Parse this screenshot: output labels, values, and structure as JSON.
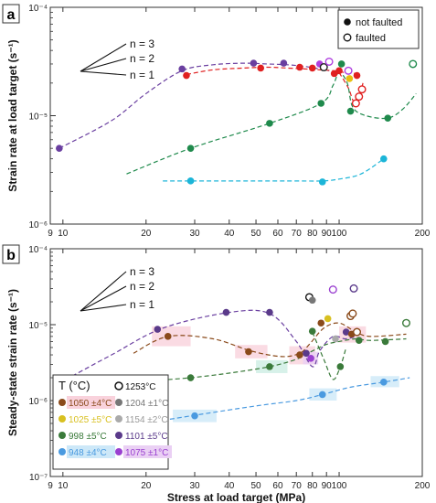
{
  "chart_data": [
    {
      "type": "scatter",
      "panel": "a",
      "ylabel": "Strain rate at load target (s⁻¹)",
      "xlabel": "",
      "x_scale": "log",
      "y_scale": "log",
      "xlim": [
        9,
        200
      ],
      "ylim": [
        1e-06,
        0.0001
      ],
      "x_ticks": [
        9,
        10,
        20,
        30,
        40,
        50,
        60,
        70,
        80,
        90,
        100,
        200
      ],
      "x_tick_labels": [
        "9",
        "10",
        "20",
        "30",
        "40",
        "50",
        "60",
        "70",
        "80",
        "90",
        "100",
        "200"
      ],
      "y_ticks": [
        1e-06,
        1e-05,
        0.0001
      ],
      "y_tick_labels": [
        "10⁻⁶",
        "10⁻⁵",
        "10⁻⁴"
      ],
      "legend": {
        "placement": "top-right",
        "entries": [
          {
            "label": "not faulted",
            "marker": "filled"
          },
          {
            "label": "faulted",
            "marker": "open"
          }
        ]
      },
      "slope_labels": [
        "n = 3",
        "n = 2",
        "n = 1"
      ],
      "series": [
        {
          "color": "#6a3fa0",
          "line": "dashed",
          "x": [
            9.7,
            15,
            20,
            27,
            35,
            45,
            55,
            65,
            75,
            85,
            92
          ],
          "y": [
            5e-06,
            9e-06,
            1.6e-05,
            2.6e-05,
            2.95e-05,
            3.05e-05,
            3e-05,
            2.95e-05,
            2.85e-05,
            2.7e-05,
            2.6e-05
          ]
        },
        {
          "color": "#e02020",
          "line": "dashed",
          "x": [
            28,
            35,
            45,
            55,
            65,
            75,
            85,
            95,
            105,
            115
          ],
          "y": [
            2.4e-05,
            2.65e-05,
            2.75e-05,
            2.8e-05,
            2.75e-05,
            2.7e-05,
            2.65e-05,
            2.6e-05,
            2.5e-05,
            2.45e-05
          ]
        },
        {
          "color": "#e02020",
          "line": "dashed",
          "x": [
            100,
            108,
            113,
            118,
            122
          ],
          "y": [
            2.5e-05,
            1.8e-05,
            1.35e-05,
            1.5e-05,
            2e-05
          ]
        },
        {
          "color": "#1f8a4c",
          "line": "dashed",
          "x": [
            17,
            29,
            56,
            86,
            95,
            100,
            107,
            112,
            125,
            150,
            170,
            190
          ],
          "y": [
            2.9e-06,
            5e-06,
            8.5e-06,
            1.3e-05,
            1.9e-05,
            2.5e-05,
            2e-05,
            1.2e-05,
            1e-05,
            9.5e-06,
            1.15e-05,
            1.6e-05
          ]
        },
        {
          "color": "#1cb5d8",
          "line": "dashed",
          "x": [
            23,
            29,
            50,
            70,
            87,
            100,
            120,
            145
          ],
          "y": [
            2.5e-06,
            2.5e-06,
            2.5e-06,
            2.5e-06,
            2.5e-06,
            2.6e-06,
            2.9e-06,
            4e-06
          ]
        }
      ],
      "points": [
        {
          "x": 9.7,
          "y": 5e-06,
          "color": "#6a3fa0",
          "open": false
        },
        {
          "x": 27,
          "y": 2.7e-05,
          "color": "#6a3fa0",
          "open": false
        },
        {
          "x": 28,
          "y": 2.35e-05,
          "color": "#e02020",
          "open": false
        },
        {
          "x": 49,
          "y": 3.05e-05,
          "color": "#6a3fa0",
          "open": false
        },
        {
          "x": 52,
          "y": 2.75e-05,
          "color": "#e02020",
          "open": false
        },
        {
          "x": 63,
          "y": 3.05e-05,
          "color": "#6a3fa0",
          "open": false
        },
        {
          "x": 72,
          "y": 2.8e-05,
          "color": "#e02020",
          "open": false
        },
        {
          "x": 80,
          "y": 2.75e-05,
          "color": "#e02020",
          "open": false
        },
        {
          "x": 85,
          "y": 3e-05,
          "color": "#b040e0",
          "open": false
        },
        {
          "x": 88,
          "y": 2.8e-05,
          "color": "#222222",
          "open": true
        },
        {
          "x": 92,
          "y": 3.15e-05,
          "color": "#b040e0",
          "open": true
        },
        {
          "x": 96,
          "y": 2.45e-05,
          "color": "#e02020",
          "open": false
        },
        {
          "x": 100,
          "y": 2.6e-05,
          "color": "#e02020",
          "open": false
        },
        {
          "x": 102,
          "y": 3e-05,
          "color": "#1f8a4c",
          "open": false
        },
        {
          "x": 108,
          "y": 2.6e-05,
          "color": "#b040e0",
          "open": true
        },
        {
          "x": 109,
          "y": 2.2e-05,
          "color": "#e8c010",
          "open": false
        },
        {
          "x": 116,
          "y": 2.35e-05,
          "color": "#e02020",
          "open": false
        },
        {
          "x": 115,
          "y": 1.3e-05,
          "color": "#e02020",
          "open": true
        },
        {
          "x": 118,
          "y": 1.5e-05,
          "color": "#e02020",
          "open": true
        },
        {
          "x": 121,
          "y": 1.75e-05,
          "color": "#e02020",
          "open": true
        },
        {
          "x": 29,
          "y": 5e-06,
          "color": "#1f8a4c",
          "open": false
        },
        {
          "x": 56,
          "y": 8.5e-06,
          "color": "#1f8a4c",
          "open": false
        },
        {
          "x": 86,
          "y": 1.3e-05,
          "color": "#1f8a4c",
          "open": false
        },
        {
          "x": 110,
          "y": 1.1e-05,
          "color": "#1f8a4c",
          "open": false
        },
        {
          "x": 150,
          "y": 9.5e-06,
          "color": "#1f8a4c",
          "open": false
        },
        {
          "x": 185,
          "y": 3e-05,
          "color": "#1f8a4c",
          "open": true
        },
        {
          "x": 29,
          "y": 2.5e-06,
          "color": "#1cb5d8",
          "open": false
        },
        {
          "x": 87,
          "y": 2.45e-06,
          "color": "#1cb5d8",
          "open": false
        },
        {
          "x": 145,
          "y": 4e-06,
          "color": "#1cb5d8",
          "open": false
        }
      ]
    },
    {
      "type": "scatter",
      "panel": "b",
      "ylabel": "Steady-state strain rate (s⁻¹)",
      "xlabel": "Stress at load target (MPa)",
      "x_scale": "log",
      "y_scale": "log",
      "xlim": [
        9,
        200
      ],
      "ylim": [
        1e-07,
        0.0001
      ],
      "x_ticks": [
        9,
        10,
        20,
        30,
        40,
        50,
        60,
        70,
        80,
        90,
        100,
        200
      ],
      "x_tick_labels": [
        "9",
        "10",
        "20",
        "30",
        "40",
        "50",
        "60",
        "70",
        "80",
        "90",
        "100",
        "200"
      ],
      "y_ticks": [
        1e-07,
        1e-06,
        1e-05,
        0.0001
      ],
      "y_tick_labels": [
        "10⁻⁷",
        "10⁻⁶",
        "10⁻⁵",
        "10⁻⁴"
      ],
      "slope_labels": [
        "n = 3",
        "n = 2",
        "n = 1"
      ],
      "legend": {
        "placement": "bottom-left",
        "title": "T (°C)",
        "entries": [
          {
            "label": "1253°C",
            "color": "#111111",
            "open": true
          },
          {
            "label": "1050 ±4°C",
            "color": "#8a4a1a",
            "bg": "#f9d2dc"
          },
          {
            "label": "1204 ±1°C",
            "color": "#777777"
          },
          {
            "label": "1025 ±5°C",
            "color": "#d8c020"
          },
          {
            "label": "1154 ±2°C",
            "color": "#aaaaaa"
          },
          {
            "label": "998 ±5°C",
            "color": "#3a7a3a"
          },
          {
            "label": "1101 ±5°C",
            "color": "#5a3a8a"
          },
          {
            "label": "948 ±4°C",
            "color": "#4a9ae0",
            "bg": "#cde8f8"
          },
          {
            "label": "1075 ±1°C",
            "color": "#9a40d0",
            "bg": "#ead0f4"
          }
        ]
      },
      "series": [
        {
          "color": "#6a3fa0",
          "line": "dashed",
          "x": [
            9.7,
            15,
            23,
            40,
            56,
            70,
            80,
            85,
            95,
            105,
            115
          ],
          "y": [
            1.7e-06,
            4e-06,
            9e-06,
            1.45e-05,
            1.4e-05,
            6e-06,
            2.8e-06,
            4.5e-06,
            7e-06,
            6.5e-06,
            7e-06
          ]
        },
        {
          "color": "#8a4a1a",
          "line": "dashed",
          "x": [
            18,
            24,
            35,
            48,
            62,
            72,
            78,
            88,
            100,
            115,
            130,
            175
          ],
          "y": [
            4.2e-06,
            7e-06,
            6.5e-06,
            4.5e-06,
            3.8e-06,
            4.2e-06,
            5.5e-06,
            9e-06,
            1.05e-05,
            8e-06,
            7e-06,
            7.5e-06
          ]
        },
        {
          "color": "#3a7a3a",
          "line": "dashed",
          "x": [
            20,
            29,
            40,
            56,
            70,
            80,
            90,
            100,
            115,
            130,
            175
          ],
          "y": [
            1.8e-06,
            2e-06,
            2.3e-06,
            2.8e-06,
            3.5e-06,
            4.5e-06,
            5.5e-06,
            6e-06,
            6.5e-06,
            6.2e-06,
            6.5e-06
          ]
        },
        {
          "color": "#3a7a3a",
          "line": "dashed",
          "x": [
            80,
            88,
            95,
            101,
            106
          ],
          "y": [
            8e-06,
            3.5e-06,
            1.9e-06,
            2.8e-06,
            5e-06
          ]
        },
        {
          "color": "#4a9ae0",
          "line": "dashed",
          "x": [
            17,
            30,
            50,
            70,
            87,
            110,
            145,
            180
          ],
          "y": [
            4.6e-07,
            6.4e-07,
            8.5e-07,
            1e-06,
            1.2e-06,
            1.5e-06,
            1.75e-06,
            2e-06
          ]
        }
      ],
      "points": [
        {
          "x": 9.7,
          "y": 1.7e-06,
          "color": "#5a3a8a",
          "open": false
        },
        {
          "x": 22,
          "y": 8.7e-06,
          "color": "#5a3a8a",
          "open": false
        },
        {
          "x": 39,
          "y": 1.45e-05,
          "color": "#5a3a8a",
          "open": false
        },
        {
          "x": 56,
          "y": 1.45e-05,
          "color": "#5a3a8a",
          "open": false
        },
        {
          "x": 24,
          "y": 7e-06,
          "color": "#8a4a1a",
          "open": false
        },
        {
          "x": 47,
          "y": 4.4e-06,
          "color": "#8a4a1a",
          "open": false
        },
        {
          "x": 72,
          "y": 4e-06,
          "color": "#8a4a1a",
          "open": false
        },
        {
          "x": 76,
          "y": 4.2e-06,
          "color": "#5a3a8a",
          "open": false
        },
        {
          "x": 79,
          "y": 3.6e-06,
          "color": "#9a40d0",
          "open": false
        },
        {
          "x": 86,
          "y": 1.05e-05,
          "color": "#8a4a1a",
          "open": false
        },
        {
          "x": 91,
          "y": 1.2e-05,
          "color": "#d8c020",
          "open": false
        },
        {
          "x": 97,
          "y": 6.5e-06,
          "color": "#aaaaaa",
          "open": false
        },
        {
          "x": 106,
          "y": 8e-06,
          "color": "#5a3a8a",
          "open": false
        },
        {
          "x": 111,
          "y": 7.5e-06,
          "color": "#8a4a1a",
          "open": false
        },
        {
          "x": 78,
          "y": 2.3e-05,
          "color": "#111111",
          "open": true
        },
        {
          "x": 80,
          "y": 2.1e-05,
          "color": "#777777",
          "open": false
        },
        {
          "x": 95,
          "y": 2.9e-05,
          "color": "#9a40d0",
          "open": true
        },
        {
          "x": 113,
          "y": 3e-05,
          "color": "#5a3a8a",
          "open": true
        },
        {
          "x": 110,
          "y": 1.3e-05,
          "color": "#8a4a1a",
          "open": true
        },
        {
          "x": 112,
          "y": 1.4e-05,
          "color": "#8a4a1a",
          "open": true
        },
        {
          "x": 116,
          "y": 8e-06,
          "color": "#8a4a1a",
          "open": true
        },
        {
          "x": 29,
          "y": 2e-06,
          "color": "#3a7a3a",
          "open": false
        },
        {
          "x": 56,
          "y": 2.8e-06,
          "color": "#3a7a3a",
          "open": false
        },
        {
          "x": 80,
          "y": 8.2e-06,
          "color": "#3a7a3a",
          "open": false
        },
        {
          "x": 101,
          "y": 2.8e-06,
          "color": "#3a7a3a",
          "open": false
        },
        {
          "x": 118,
          "y": 6.2e-06,
          "color": "#3a7a3a",
          "open": false
        },
        {
          "x": 147,
          "y": 6e-06,
          "color": "#3a7a3a",
          "open": false
        },
        {
          "x": 175,
          "y": 1.05e-05,
          "color": "#3a7a3a",
          "open": true
        },
        {
          "x": 30,
          "y": 6.3e-07,
          "color": "#4a9ae0",
          "open": false
        },
        {
          "x": 87,
          "y": 1.2e-06,
          "color": "#4a9ae0",
          "open": false
        },
        {
          "x": 145,
          "y": 1.75e-06,
          "color": "#4a9ae0",
          "open": false
        }
      ],
      "highlights": [
        {
          "x0": 21,
          "x1": 29,
          "y0": 5.2e-06,
          "y1": 9.5e-06,
          "color": "#f9d2dc"
        },
        {
          "x0": 42,
          "x1": 55,
          "y0": 3.6e-06,
          "y1": 5.4e-06,
          "color": "#f9d2dc"
        },
        {
          "x0": 66,
          "x1": 82,
          "y0": 3e-06,
          "y1": 5.2e-06,
          "color": "#f9d2dc"
        },
        {
          "x0": 100,
          "x1": 125,
          "y0": 5.8e-06,
          "y1": 9.5e-06,
          "color": "#f9d2dc"
        },
        {
          "x0": 25,
          "x1": 36,
          "y0": 5.2e-07,
          "y1": 7.6e-07,
          "color": "#cde8f8"
        },
        {
          "x0": 78,
          "x1": 98,
          "y0": 1e-06,
          "y1": 1.45e-06,
          "color": "#cde8f8"
        },
        {
          "x0": 130,
          "x1": 165,
          "y0": 1.5e-06,
          "y1": 2.1e-06,
          "color": "#cde8f8"
        },
        {
          "x0": 50,
          "x1": 65,
          "y0": 2.3e-06,
          "y1": 3.4e-06,
          "color": "#cdeee4"
        },
        {
          "x0": 74,
          "x1": 84,
          "y0": 3e-06,
          "y1": 4.4e-06,
          "color": "#ead0f4"
        }
      ]
    }
  ]
}
